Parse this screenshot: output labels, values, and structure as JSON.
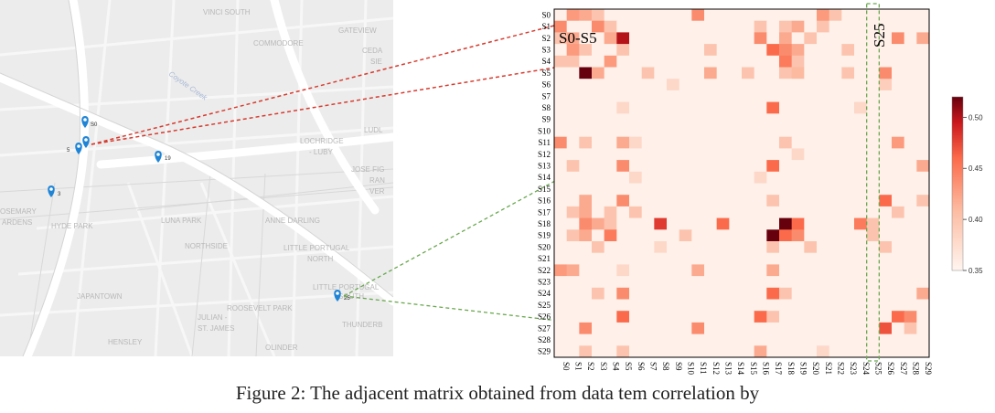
{
  "map": {
    "neighborhoods": [
      "VINCI SOUTH",
      "GATEVIEW",
      "COMMODORE",
      "CEDA",
      "SIE",
      "Coyote Creek",
      "LUDL",
      "LOCHRIDGE",
      "- LUBY",
      "JOSE FIG",
      "RAN",
      "VER",
      "OSEMARY",
      "ARDENS",
      "HYDE PARK",
      "LUNA PARK",
      "ANNE DARLING",
      "NORTHSIDE",
      "LITTLE PORTUGAL",
      "NORTH",
      "LITTLE PORTUGAL",
      "SOUTH",
      "JAPANTOWN",
      "ROOSEVELT PARK",
      "JULIAN -",
      "ST. JAMES",
      "THUNDERB",
      "HENSLEY",
      "OLINDER"
    ],
    "markers": [
      {
        "label": "S0"
      },
      {
        "label": "5"
      },
      {
        "label": "19"
      },
      {
        "label": "3"
      },
      {
        "label": "25"
      }
    ]
  },
  "chart_data": {
    "type": "heatmap",
    "title": "",
    "rows": [
      "S0",
      "S1",
      "S2",
      "S3",
      "S4",
      "S5",
      "S6",
      "S7",
      "S8",
      "S9",
      "S10",
      "S11",
      "S12",
      "S13",
      "S14",
      "S15",
      "S16",
      "S17",
      "S18",
      "S19",
      "S20",
      "S21",
      "S22",
      "S23",
      "S24",
      "S25",
      "S26",
      "S27",
      "S28",
      "S29"
    ],
    "cols": [
      "S0",
      "S1",
      "S2",
      "S3",
      "S4",
      "S5",
      "S6",
      "S7",
      "S8",
      "S9",
      "S10",
      "S11",
      "S12",
      "S13",
      "S14",
      "S15",
      "S16",
      "S17",
      "S18",
      "S19",
      "S20",
      "S21",
      "S22",
      "S23",
      "S24",
      "S25",
      "S26",
      "S27",
      "S28",
      "S29"
    ],
    "colorbar": {
      "min": 0.35,
      "max": 0.52,
      "ticks": [
        0.35,
        0.4,
        0.45,
        0.5
      ],
      "tick_labels": [
        "0.35",
        "0.40",
        "0.45",
        "0.50"
      ],
      "low_color": "#fff5f0",
      "high_color": "#67000d"
    },
    "base_value": 0.355,
    "highlights": [
      {
        "row": 0,
        "col": 1,
        "value": 0.43
      },
      {
        "row": 0,
        "col": 2,
        "value": 0.42
      },
      {
        "row": 0,
        "col": 3,
        "value": 0.4
      },
      {
        "row": 0,
        "col": 11,
        "value": 0.44
      },
      {
        "row": 0,
        "col": 21,
        "value": 0.43
      },
      {
        "row": 0,
        "col": 22,
        "value": 0.4
      },
      {
        "row": 1,
        "col": 0,
        "value": 0.44
      },
      {
        "row": 1,
        "col": 3,
        "value": 0.44
      },
      {
        "row": 1,
        "col": 4,
        "value": 0.4
      },
      {
        "row": 1,
        "col": 16,
        "value": 0.4
      },
      {
        "row": 1,
        "col": 18,
        "value": 0.4
      },
      {
        "row": 1,
        "col": 19,
        "value": 0.42
      },
      {
        "row": 1,
        "col": 21,
        "value": 0.4
      },
      {
        "row": 2,
        "col": 0,
        "value": 0.4
      },
      {
        "row": 2,
        "col": 1,
        "value": 0.42
      },
      {
        "row": 2,
        "col": 4,
        "value": 0.42
      },
      {
        "row": 2,
        "col": 5,
        "value": 0.5
      },
      {
        "row": 2,
        "col": 16,
        "value": 0.44
      },
      {
        "row": 2,
        "col": 18,
        "value": 0.42
      },
      {
        "row": 2,
        "col": 20,
        "value": 0.4
      },
      {
        "row": 2,
        "col": 27,
        "value": 0.44
      },
      {
        "row": 2,
        "col": 29,
        "value": 0.42
      },
      {
        "row": 3,
        "col": 1,
        "value": 0.43
      },
      {
        "row": 3,
        "col": 2,
        "value": 0.4
      },
      {
        "row": 3,
        "col": 5,
        "value": 0.4
      },
      {
        "row": 3,
        "col": 12,
        "value": 0.4
      },
      {
        "row": 3,
        "col": 17,
        "value": 0.46
      },
      {
        "row": 3,
        "col": 18,
        "value": 0.44
      },
      {
        "row": 3,
        "col": 19,
        "value": 0.42
      },
      {
        "row": 3,
        "col": 23,
        "value": 0.4
      },
      {
        "row": 4,
        "col": 0,
        "value": 0.4
      },
      {
        "row": 4,
        "col": 1,
        "value": 0.4
      },
      {
        "row": 4,
        "col": 4,
        "value": 0.43
      },
      {
        "row": 4,
        "col": 18,
        "value": 0.45
      },
      {
        "row": 4,
        "col": 19,
        "value": 0.4
      },
      {
        "row": 5,
        "col": 2,
        "value": 0.52
      },
      {
        "row": 5,
        "col": 3,
        "value": 0.42
      },
      {
        "row": 5,
        "col": 7,
        "value": 0.4
      },
      {
        "row": 5,
        "col": 12,
        "value": 0.42
      },
      {
        "row": 5,
        "col": 15,
        "value": 0.4
      },
      {
        "row": 5,
        "col": 18,
        "value": 0.4
      },
      {
        "row": 5,
        "col": 19,
        "value": 0.41
      },
      {
        "row": 5,
        "col": 23,
        "value": 0.4
      },
      {
        "row": 5,
        "col": 26,
        "value": 0.44
      },
      {
        "row": 6,
        "col": 9,
        "value": 0.38
      },
      {
        "row": 6,
        "col": 26,
        "value": 0.39
      },
      {
        "row": 8,
        "col": 17,
        "value": 0.46
      },
      {
        "row": 8,
        "col": 5,
        "value": 0.38
      },
      {
        "row": 8,
        "col": 24,
        "value": 0.38
      },
      {
        "row": 11,
        "col": 0,
        "value": 0.44
      },
      {
        "row": 11,
        "col": 2,
        "value": 0.4
      },
      {
        "row": 11,
        "col": 5,
        "value": 0.42
      },
      {
        "row": 11,
        "col": 6,
        "value": 0.38
      },
      {
        "row": 11,
        "col": 18,
        "value": 0.4
      },
      {
        "row": 11,
        "col": 27,
        "value": 0.43
      },
      {
        "row": 12,
        "col": 19,
        "value": 0.38
      },
      {
        "row": 13,
        "col": 1,
        "value": 0.4
      },
      {
        "row": 13,
        "col": 5,
        "value": 0.44
      },
      {
        "row": 13,
        "col": 17,
        "value": 0.46
      },
      {
        "row": 13,
        "col": 29,
        "value": 0.42
      },
      {
        "row": 14,
        "col": 6,
        "value": 0.38
      },
      {
        "row": 14,
        "col": 16,
        "value": 0.38
      },
      {
        "row": 16,
        "col": 2,
        "value": 0.42
      },
      {
        "row": 16,
        "col": 5,
        "value": 0.44
      },
      {
        "row": 16,
        "col": 17,
        "value": 0.4
      },
      {
        "row": 16,
        "col": 26,
        "value": 0.46
      },
      {
        "row": 16,
        "col": 29,
        "value": 0.4
      },
      {
        "row": 17,
        "col": 1,
        "value": 0.4
      },
      {
        "row": 17,
        "col": 2,
        "value": 0.42
      },
      {
        "row": 17,
        "col": 4,
        "value": 0.4
      },
      {
        "row": 17,
        "col": 6,
        "value": 0.4
      },
      {
        "row": 17,
        "col": 27,
        "value": 0.4
      },
      {
        "row": 18,
        "col": 2,
        "value": 0.44
      },
      {
        "row": 18,
        "col": 3,
        "value": 0.42
      },
      {
        "row": 18,
        "col": 4,
        "value": 0.4
      },
      {
        "row": 18,
        "col": 8,
        "value": 0.48
      },
      {
        "row": 18,
        "col": 13,
        "value": 0.46
      },
      {
        "row": 18,
        "col": 18,
        "value": 0.52
      },
      {
        "row": 18,
        "col": 19,
        "value": 0.46
      },
      {
        "row": 18,
        "col": 24,
        "value": 0.45
      },
      {
        "row": 18,
        "col": 25,
        "value": 0.4
      },
      {
        "row": 19,
        "col": 1,
        "value": 0.4
      },
      {
        "row": 19,
        "col": 2,
        "value": 0.42
      },
      {
        "row": 19,
        "col": 4,
        "value": 0.45
      },
      {
        "row": 19,
        "col": 10,
        "value": 0.4
      },
      {
        "row": 19,
        "col": 17,
        "value": 0.52
      },
      {
        "row": 19,
        "col": 18,
        "value": 0.46
      },
      {
        "row": 19,
        "col": 19,
        "value": 0.44
      },
      {
        "row": 19,
        "col": 25,
        "value": 0.4
      },
      {
        "row": 20,
        "col": 3,
        "value": 0.4
      },
      {
        "row": 20,
        "col": 8,
        "value": 0.38
      },
      {
        "row": 20,
        "col": 17,
        "value": 0.4
      },
      {
        "row": 20,
        "col": 20,
        "value": 0.4
      },
      {
        "row": 20,
        "col": 26,
        "value": 0.4
      },
      {
        "row": 22,
        "col": 0,
        "value": 0.43
      },
      {
        "row": 22,
        "col": 1,
        "value": 0.42
      },
      {
        "row": 22,
        "col": 5,
        "value": 0.38
      },
      {
        "row": 22,
        "col": 11,
        "value": 0.42
      },
      {
        "row": 22,
        "col": 17,
        "value": 0.42
      },
      {
        "row": 24,
        "col": 3,
        "value": 0.4
      },
      {
        "row": 24,
        "col": 5,
        "value": 0.44
      },
      {
        "row": 24,
        "col": 17,
        "value": 0.46
      },
      {
        "row": 24,
        "col": 18,
        "value": 0.4
      },
      {
        "row": 24,
        "col": 29,
        "value": 0.42
      },
      {
        "row": 26,
        "col": 5,
        "value": 0.46
      },
      {
        "row": 26,
        "col": 16,
        "value": 0.46
      },
      {
        "row": 26,
        "col": 17,
        "value": 0.4
      },
      {
        "row": 26,
        "col": 27,
        "value": 0.46
      },
      {
        "row": 26,
        "col": 28,
        "value": 0.44
      },
      {
        "row": 27,
        "col": 2,
        "value": 0.44
      },
      {
        "row": 27,
        "col": 11,
        "value": 0.44
      },
      {
        "row": 27,
        "col": 26,
        "value": 0.47
      },
      {
        "row": 27,
        "col": 28,
        "value": 0.4
      },
      {
        "row": 29,
        "col": 2,
        "value": 0.4
      },
      {
        "row": 29,
        "col": 5,
        "value": 0.4
      },
      {
        "row": 29,
        "col": 16,
        "value": 0.42
      },
      {
        "row": 29,
        "col": 21,
        "value": 0.38
      }
    ],
    "annotations": {
      "row_group": "S0-S5",
      "col_group": "S25"
    }
  },
  "caption": "Figure 2: The adjacent matrix obtained from data tem correlation by"
}
